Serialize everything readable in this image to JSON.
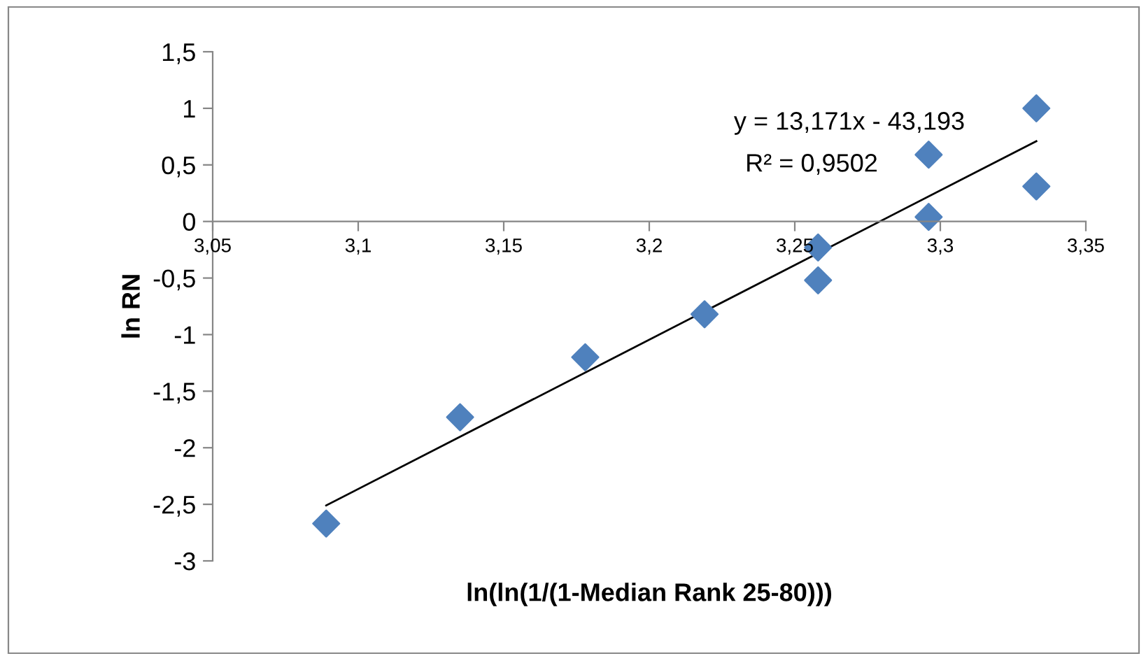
{
  "chart_data": {
    "type": "scatter",
    "xlabel": "ln(ln(1/(1-Median Rank 25-80)))",
    "ylabel": "ln RN",
    "series": [
      {
        "color": "#4f81bd",
        "marker": "diamond",
        "x": [
          3.089,
          3.135,
          3.178,
          3.219,
          3.258,
          3.258,
          3.296,
          3.296,
          3.333,
          3.333
        ],
        "values": [
          -2.67,
          -1.73,
          -1.2,
          -0.82,
          -0.23,
          -0.52,
          0.59,
          0.04,
          1.0,
          0.31
        ]
      },
      {
        "type": "line",
        "color": "#000000",
        "marker": "none",
        "x": [
          3.089,
          3.333
        ],
        "values": [
          -2.51,
          0.71
        ]
      }
    ],
    "annotations": [
      "y = 13,171x - 43,193",
      "R² = 0,9502"
    ],
    "xlim": [
      3.05,
      3.35
    ],
    "ylim": [
      -3,
      1.5
    ],
    "xticks": [
      {
        "value": 3.05,
        "label": "3,05"
      },
      {
        "value": 3.1,
        "label": "3,1"
      },
      {
        "value": 3.15,
        "label": "3,15"
      },
      {
        "value": 3.2,
        "label": "3,2"
      },
      {
        "value": 3.25,
        "label": "3,25"
      },
      {
        "value": 3.3,
        "label": "3,3"
      },
      {
        "value": 3.35,
        "label": "3,35"
      }
    ],
    "yticks": [
      {
        "value": -3,
        "label": "-3"
      },
      {
        "value": -2.5,
        "label": "-2,5"
      },
      {
        "value": -2,
        "label": "-2"
      },
      {
        "value": -1.5,
        "label": "-1,5"
      },
      {
        "value": -1,
        "label": "-1"
      },
      {
        "value": -0.5,
        "label": "-0,5"
      },
      {
        "value": 0,
        "label": "0"
      },
      {
        "value": 0.5,
        "label": "0,5"
      },
      {
        "value": 1,
        "label": "1"
      },
      {
        "value": 1.5,
        "label": "1,5"
      }
    ],
    "grid": false,
    "legend": false
  }
}
